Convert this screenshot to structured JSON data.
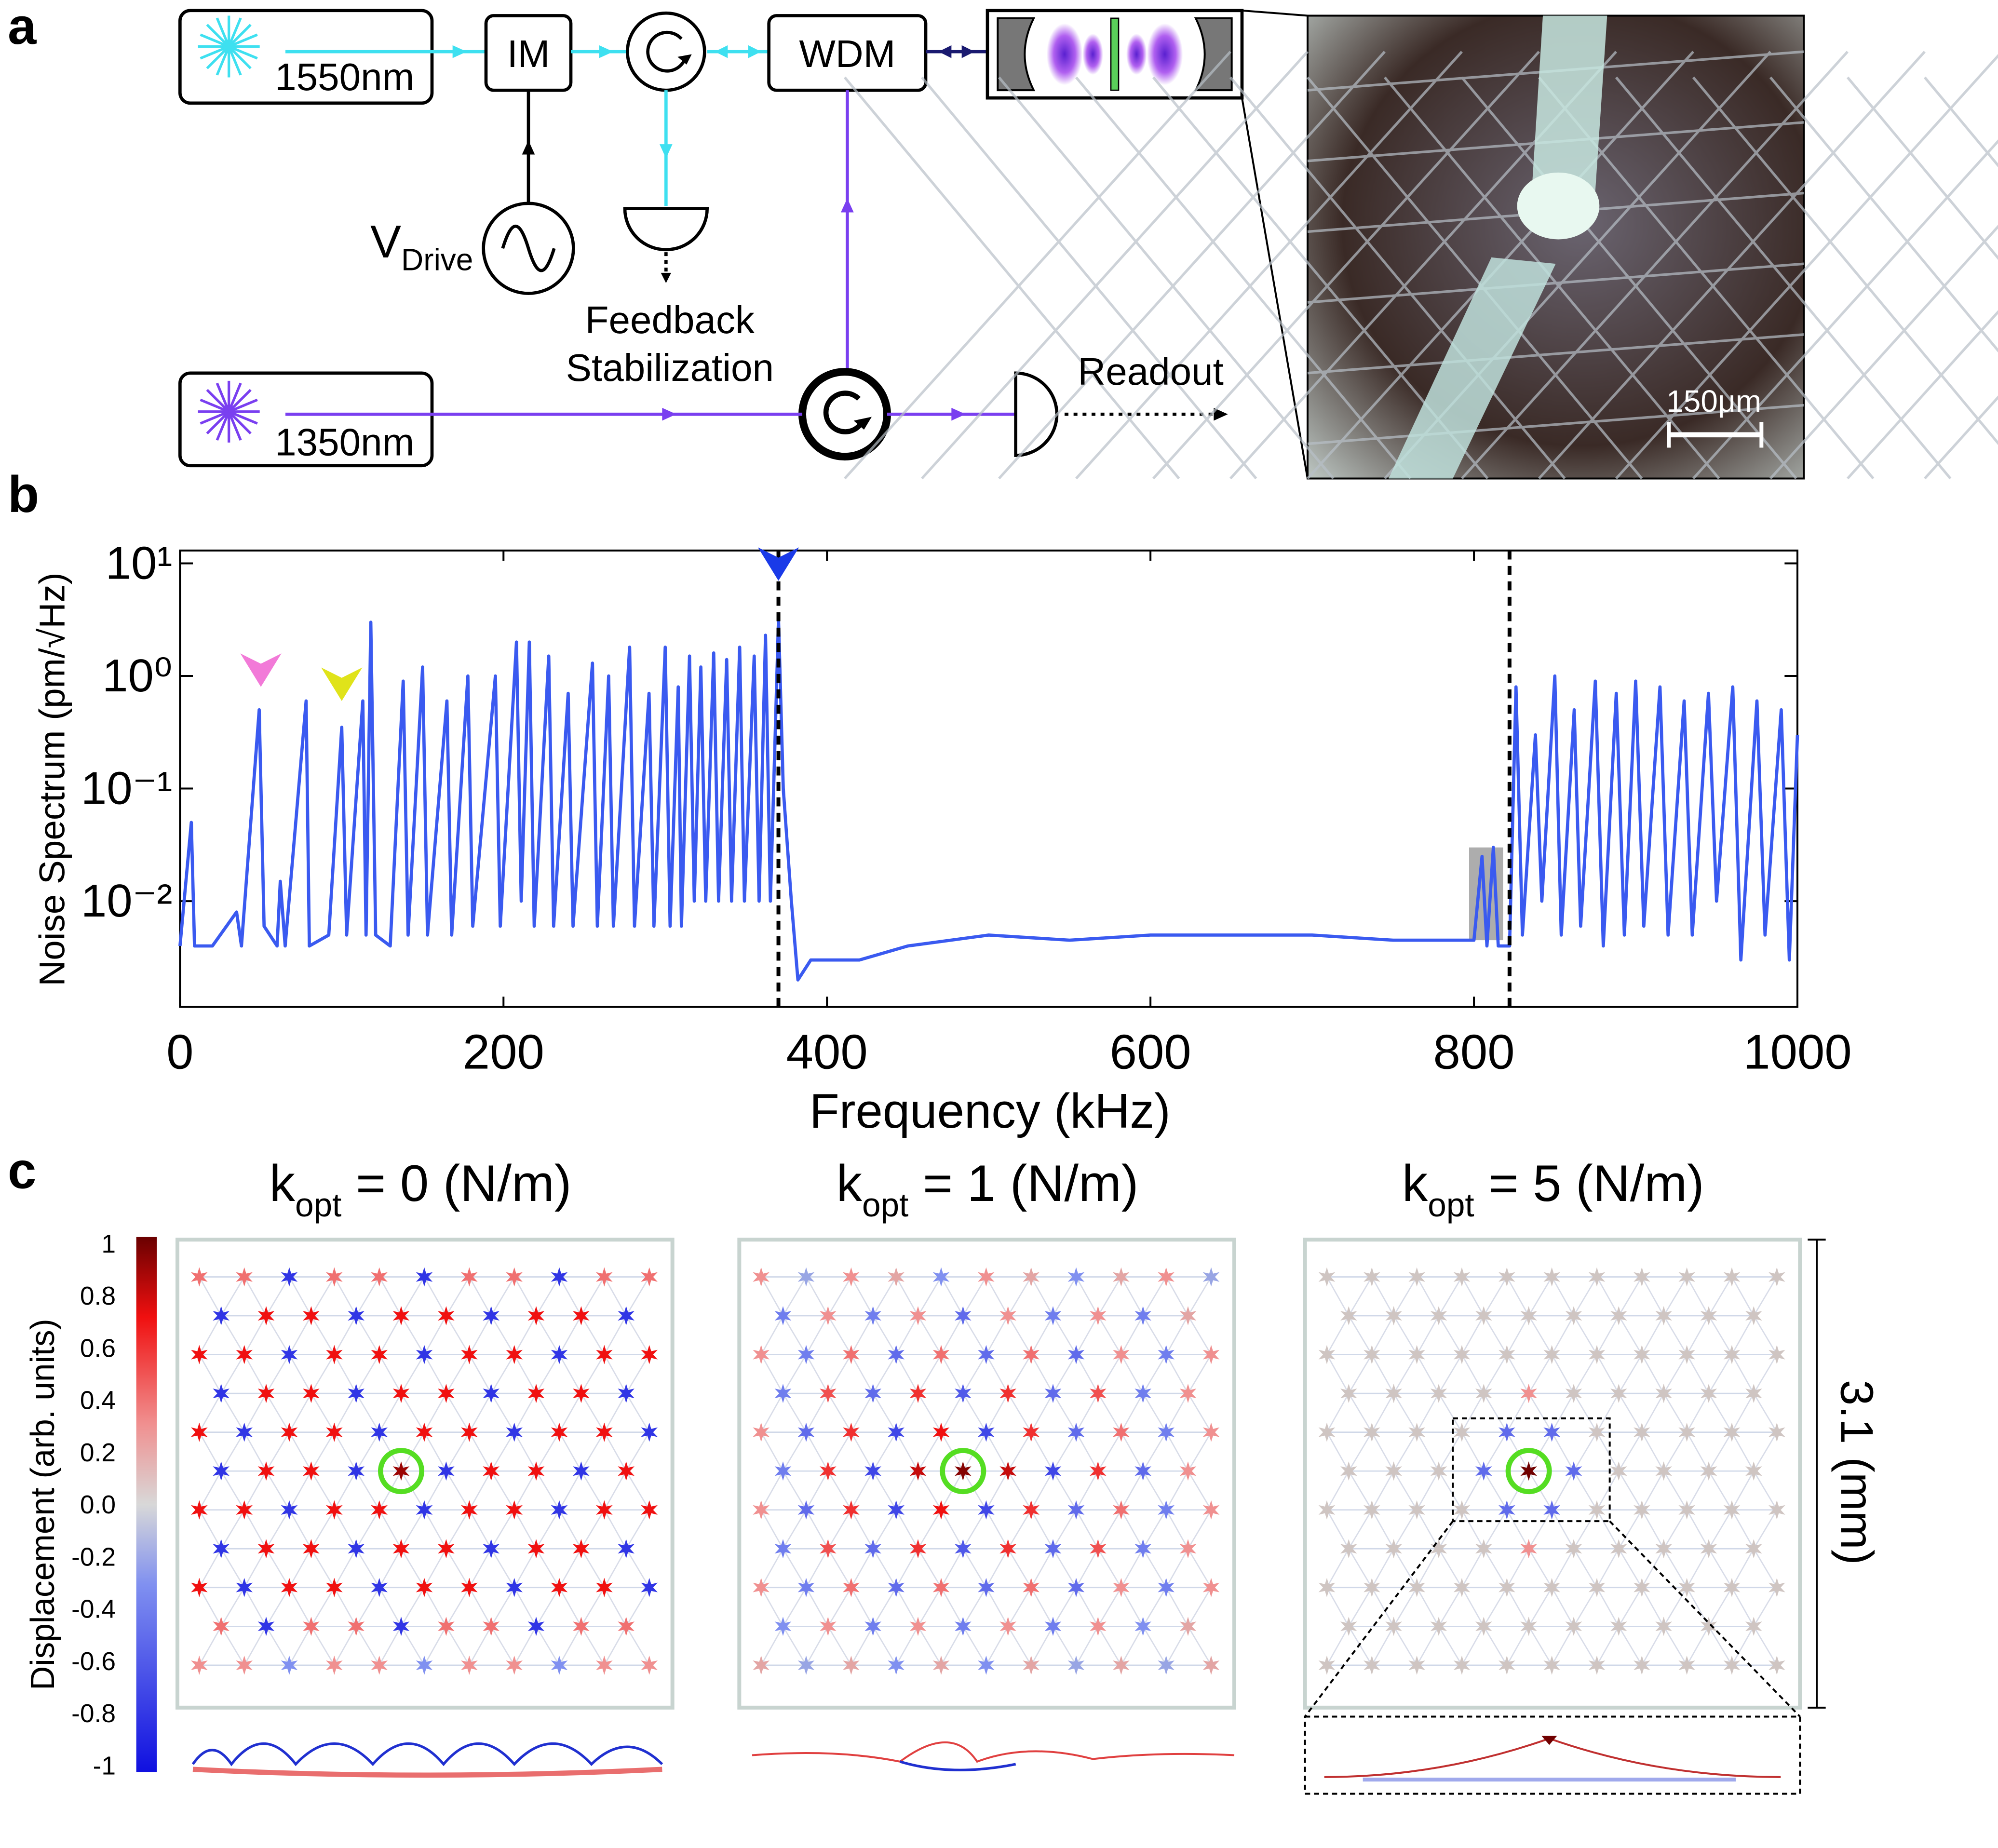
{
  "panel_labels": [
    "a",
    "b",
    "c"
  ],
  "setup": {
    "laser_1550": "1550nm",
    "modulator": "IM",
    "wdm": "WDM",
    "drive": {
      "main": "V",
      "sub": "Drive"
    },
    "feedback": [
      "Feedback",
      "Stabilization"
    ],
    "laser_1350": "1350nm",
    "readout": "Readout",
    "scale_bar": "150μm"
  },
  "chart_data": {
    "type": "line",
    "log_y": true,
    "xlabel": "Frequency (kHz)",
    "ylabel": "Noise Spectrum (pm/√Hz)",
    "xlim": [
      0,
      1000
    ],
    "xticks": [
      0,
      200,
      400,
      600,
      800,
      1000
    ],
    "ylim": [
      0.00115,
      13
    ],
    "yticks": [
      {
        "value": 0.01,
        "label": "10⁻²"
      },
      {
        "value": 0.1,
        "label": "10⁻¹"
      },
      {
        "value": 1,
        "label": "10⁰"
      },
      {
        "value": 10,
        "label": "10¹"
      }
    ],
    "x": [
      0,
      7,
      9,
      20,
      35,
      38,
      49,
      52,
      60,
      62,
      65,
      78,
      80,
      92,
      100,
      103,
      113,
      115,
      118,
      121,
      130,
      138,
      141,
      150,
      153,
      165,
      168,
      178,
      181,
      195,
      198,
      208,
      211,
      216,
      219,
      228,
      231,
      240,
      243,
      255,
      258,
      265,
      268,
      278,
      281,
      290,
      293,
      300,
      303,
      308,
      310,
      315,
      318,
      322,
      325,
      330,
      333,
      338,
      341,
      346,
      349,
      355,
      358,
      362,
      365,
      370,
      373,
      378,
      382,
      390,
      420,
      450,
      500,
      550,
      600,
      650,
      700,
      750,
      800,
      805,
      808,
      812,
      815,
      822,
      826,
      830,
      838,
      842,
      850,
      854,
      862,
      866,
      875,
      880,
      888,
      893,
      900,
      905,
      915,
      920,
      930,
      935,
      945,
      950,
      960,
      965,
      975,
      980,
      990,
      995,
      1000
    ],
    "series": [
      {
        "name": "Noise spectrum",
        "color": "#3a5af0",
        "values": [
          0.004,
          0.05,
          0.004,
          0.004,
          0.008,
          0.004,
          0.5,
          0.006,
          0.004,
          0.015,
          0.004,
          0.6,
          0.004,
          0.005,
          0.35,
          0.005,
          0.6,
          0.005,
          3.0,
          0.005,
          0.004,
          0.9,
          0.005,
          1.2,
          0.005,
          0.6,
          0.005,
          1.0,
          0.006,
          1.0,
          0.006,
          2.0,
          0.01,
          2.0,
          0.006,
          1.5,
          0.006,
          0.7,
          0.006,
          1.3,
          0.006,
          1.0,
          0.006,
          1.8,
          0.006,
          0.7,
          0.006,
          1.8,
          0.006,
          0.8,
          0.006,
          1.5,
          0.01,
          1.2,
          0.01,
          1.6,
          0.01,
          1.4,
          0.01,
          1.8,
          0.01,
          1.5,
          0.01,
          2.3,
          0.01,
          3.2,
          0.1,
          0.01,
          0.002,
          0.003,
          0.003,
          0.004,
          0.005,
          0.0045,
          0.005,
          0.005,
          0.005,
          0.0045,
          0.0045,
          0.025,
          0.004,
          0.03,
          0.004,
          0.004,
          0.8,
          0.005,
          0.3,
          0.01,
          1.0,
          0.005,
          0.5,
          0.006,
          0.9,
          0.004,
          0.7,
          0.005,
          0.9,
          0.006,
          0.8,
          0.005,
          0.6,
          0.005,
          0.7,
          0.01,
          0.8,
          0.003,
          0.6,
          0.005,
          0.5,
          0.003,
          0.3
        ]
      }
    ],
    "vlines": [
      370,
      822
    ],
    "highlight": {
      "x": [
        797,
        818
      ],
      "y": [
        0.0045,
        0.03
      ],
      "color": "#999999"
    },
    "arrows": [
      {
        "x": 50,
        "y": 0.8,
        "color": "#f27ad8"
      },
      {
        "x": 100,
        "y": 0.6,
        "color": "#e0e31a"
      },
      {
        "x": 370,
        "y": 7,
        "color": "#1a3ae8"
      }
    ]
  },
  "maps": {
    "colorbar": {
      "label": "Displacement (arb. units)",
      "lim": [
        -1,
        1
      ],
      "ticks": [
        1,
        0.8,
        0.6,
        0.4,
        0.2,
        {
          "value": 0,
          "label": "0.0"
        },
        -0.2,
        -0.4,
        -0.6,
        -0.8,
        -1
      ]
    },
    "scale_label": "3.1 (mm)",
    "panels": [
      {
        "title": {
          "main": "k",
          "sub": "opt",
          "rest": " = 0 (N/m)"
        },
        "nodes": [
          [
            0.4,
            0.4,
            -0.8,
            0.4,
            0.4,
            -0.8,
            0.4,
            0.4,
            -0.8,
            0.4,
            0.4
          ],
          [
            -0.8,
            0.7,
            0.7,
            -0.8,
            0.7,
            0.7,
            -0.8,
            0.7,
            0.7,
            -0.8
          ],
          [
            0.7,
            0.7,
            -0.8,
            0.7,
            0.7,
            -0.8,
            0.7,
            0.7,
            -0.8,
            0.7,
            0.7
          ],
          [
            -0.8,
            0.7,
            0.7,
            -0.8,
            0.7,
            0.7,
            -0.8,
            0.7,
            0.7,
            -0.8
          ],
          [
            0.7,
            -0.8,
            0.7,
            0.7,
            -0.8,
            0.7,
            0.7,
            -0.8,
            0.7,
            0.7,
            -0.8
          ],
          [
            -0.8,
            0.7,
            0.7,
            -0.8,
            0.9,
            -0.8,
            0.7,
            0.7,
            -0.8,
            0.7
          ],
          [
            0.7,
            0.7,
            -0.8,
            0.7,
            0.7,
            -0.8,
            0.7,
            0.7,
            -0.8,
            0.7,
            0.7
          ],
          [
            -0.8,
            0.7,
            0.7,
            -0.8,
            0.7,
            0.7,
            -0.8,
            0.7,
            0.7,
            -0.8
          ],
          [
            0.7,
            -0.8,
            0.7,
            0.7,
            -0.8,
            0.7,
            0.7,
            -0.8,
            0.7,
            0.7,
            -0.8
          ],
          [
            0.4,
            -0.8,
            0.4,
            0.4,
            -0.8,
            0.4,
            0.4,
            -0.8,
            0.4,
            0.4
          ],
          [
            0.3,
            0.3,
            -0.3,
            0.3,
            0.3,
            -0.3,
            0.3,
            0.3,
            -0.3,
            0.3,
            0.3
          ]
        ]
      },
      {
        "title": {
          "main": "k",
          "sub": "opt",
          "rest": " = 1 (N/m)"
        },
        "nodes": [
          [
            0.3,
            -0.2,
            0.3,
            0.2,
            -0.3,
            0.3,
            0.2,
            -0.3,
            0.2,
            0.3,
            -0.2
          ],
          [
            -0.4,
            0.3,
            -0.4,
            0.3,
            -0.5,
            0.3,
            -0.4,
            0.3,
            -0.4,
            0.2
          ],
          [
            0.3,
            -0.4,
            0.4,
            -0.5,
            0.4,
            -0.5,
            0.4,
            -0.5,
            0.3,
            -0.4,
            0.3
          ],
          [
            -0.4,
            0.5,
            -0.5,
            0.6,
            -0.6,
            0.6,
            -0.5,
            0.5,
            -0.4,
            0.3
          ],
          [
            0.3,
            -0.5,
            0.6,
            -0.7,
            0.7,
            -0.7,
            0.6,
            -0.5,
            0.4,
            -0.4,
            0.3
          ],
          [
            -0.4,
            0.6,
            -0.7,
            0.8,
            0.95,
            0.8,
            -0.7,
            0.6,
            -0.5,
            0.3
          ],
          [
            0.3,
            -0.5,
            0.6,
            -0.7,
            0.7,
            -0.7,
            0.6,
            -0.5,
            0.4,
            -0.4,
            0.3
          ],
          [
            -0.4,
            0.5,
            -0.5,
            0.6,
            -0.6,
            0.6,
            -0.5,
            0.5,
            -0.4,
            0.3
          ],
          [
            0.3,
            -0.4,
            0.4,
            -0.5,
            0.4,
            -0.5,
            0.4,
            -0.5,
            0.3,
            -0.4,
            0.3
          ],
          [
            -0.3,
            0.3,
            -0.4,
            0.3,
            -0.4,
            0.3,
            -0.4,
            0.3,
            -0.3,
            0.2
          ],
          [
            0.2,
            -0.2,
            0.2,
            -0.3,
            0.2,
            -0.3,
            0.2,
            -0.2,
            0.2,
            -0.2,
            0.2
          ]
        ]
      },
      {
        "title": {
          "main": "k",
          "sub": "opt",
          "rest": " = 5 (N/m)"
        },
        "nodes": [
          [
            0.05,
            0.05,
            0.05,
            0.05,
            0.05,
            0.05,
            0.05,
            0.05,
            0.05,
            0.05,
            0.05
          ],
          [
            0.05,
            0.05,
            0.05,
            0.05,
            0.05,
            0.05,
            0.05,
            0.05,
            0.05,
            0.05
          ],
          [
            0.05,
            0.05,
            0.05,
            0.05,
            0.05,
            0.05,
            0.05,
            0.05,
            0.05,
            0.05,
            0.05
          ],
          [
            0.05,
            0.05,
            0.05,
            0.05,
            0.3,
            0.05,
            0.05,
            0.05,
            0.05,
            0.05
          ],
          [
            0.05,
            0.05,
            0.05,
            0.05,
            -0.5,
            -0.5,
            0.05,
            0.05,
            0.05,
            0.05,
            0.05
          ],
          [
            0.05,
            0.05,
            0.05,
            -0.5,
            1,
            -0.5,
            0.05,
            0.05,
            0.05,
            0.05
          ],
          [
            0.05,
            0.05,
            0.05,
            0.05,
            -0.5,
            -0.5,
            0.05,
            0.05,
            0.05,
            0.05,
            0.05
          ],
          [
            0.05,
            0.05,
            0.05,
            0.05,
            0.3,
            0.05,
            0.05,
            0.05,
            0.05,
            0.05
          ],
          [
            0.05,
            0.05,
            0.05,
            0.05,
            0.05,
            0.05,
            0.05,
            0.05,
            0.05,
            0.05,
            0.05
          ],
          [
            0.05,
            0.05,
            0.05,
            0.05,
            0.05,
            0.05,
            0.05,
            0.05,
            0.05,
            0.05
          ],
          [
            0.05,
            0.05,
            0.05,
            0.05,
            0.05,
            0.05,
            0.05,
            0.05,
            0.05,
            0.05,
            0.05
          ]
        ]
      }
    ]
  }
}
